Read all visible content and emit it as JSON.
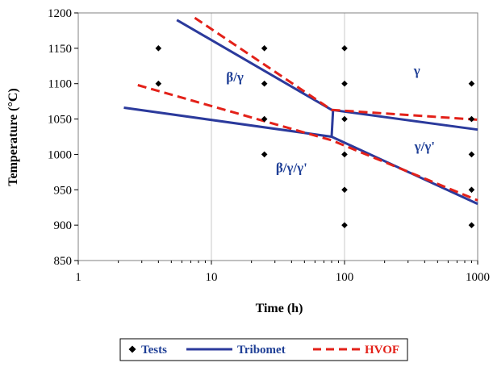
{
  "chart_data": {
    "type": "line",
    "title": "",
    "xlabel": "Time (h)",
    "ylabel": "Temperature (°C)",
    "xscale": "log",
    "xlim": [
      1,
      1000
    ],
    "ylim": [
      850,
      1200
    ],
    "x_ticks": [
      1,
      10,
      100,
      1000
    ],
    "x_tick_labels": [
      "1",
      "10",
      "100",
      "1000"
    ],
    "y_ticks": [
      850,
      900,
      950,
      1000,
      1050,
      1100,
      1150,
      1200
    ],
    "y_tick_labels": [
      "850",
      "900",
      "950",
      "1000",
      "1050",
      "1100",
      "1150",
      "1200"
    ],
    "grid": "vertical lines at decades",
    "legend_position": "bottom",
    "series": [
      {
        "name": "Tests",
        "type": "scatter",
        "marker": "diamond",
        "color": "#000000",
        "points": [
          [
            4,
            1150
          ],
          [
            4,
            1100
          ],
          [
            25,
            1150
          ],
          [
            25,
            1100
          ],
          [
            25,
            1050
          ],
          [
            25,
            1000
          ],
          [
            100,
            1150
          ],
          [
            100,
            1100
          ],
          [
            100,
            1050
          ],
          [
            100,
            1000
          ],
          [
            100,
            950
          ],
          [
            100,
            900
          ],
          [
            900,
            1100
          ],
          [
            900,
            1050
          ],
          [
            900,
            1000
          ],
          [
            900,
            950
          ],
          [
            900,
            900
          ]
        ]
      },
      {
        "name": "Tribomet",
        "type": "line",
        "color": "#2b3a9c",
        "dash": "solid",
        "segments": [
          [
            [
              5.5,
              1190
            ],
            [
              80,
              1063
            ],
            [
              1000,
              1035
            ]
          ],
          [
            [
              2.2,
              1066
            ],
            [
              80,
              1025
            ],
            [
              1000,
              930
            ]
          ],
          [
            [
              80,
              1025
            ],
            [
              82,
              1063
            ]
          ]
        ]
      },
      {
        "name": "HVOF",
        "type": "line",
        "color": "#e32119",
        "dash": "dashed",
        "segments": [
          [
            [
              7.5,
              1193
            ],
            [
              80,
              1063
            ],
            [
              1000,
              1049
            ]
          ],
          [
            [
              2.8,
              1098
            ],
            [
              80,
              1020
            ],
            [
              1000,
              935
            ]
          ]
        ]
      }
    ],
    "annotations": [
      {
        "text": "β/γ",
        "x": 15,
        "y": 1103
      },
      {
        "text": "γ",
        "x": 350,
        "y": 1112
      },
      {
        "text": "γ/γ'",
        "x": 400,
        "y": 1005
      },
      {
        "text": "β/γ/γ'",
        "x": 40,
        "y": 975
      }
    ]
  }
}
